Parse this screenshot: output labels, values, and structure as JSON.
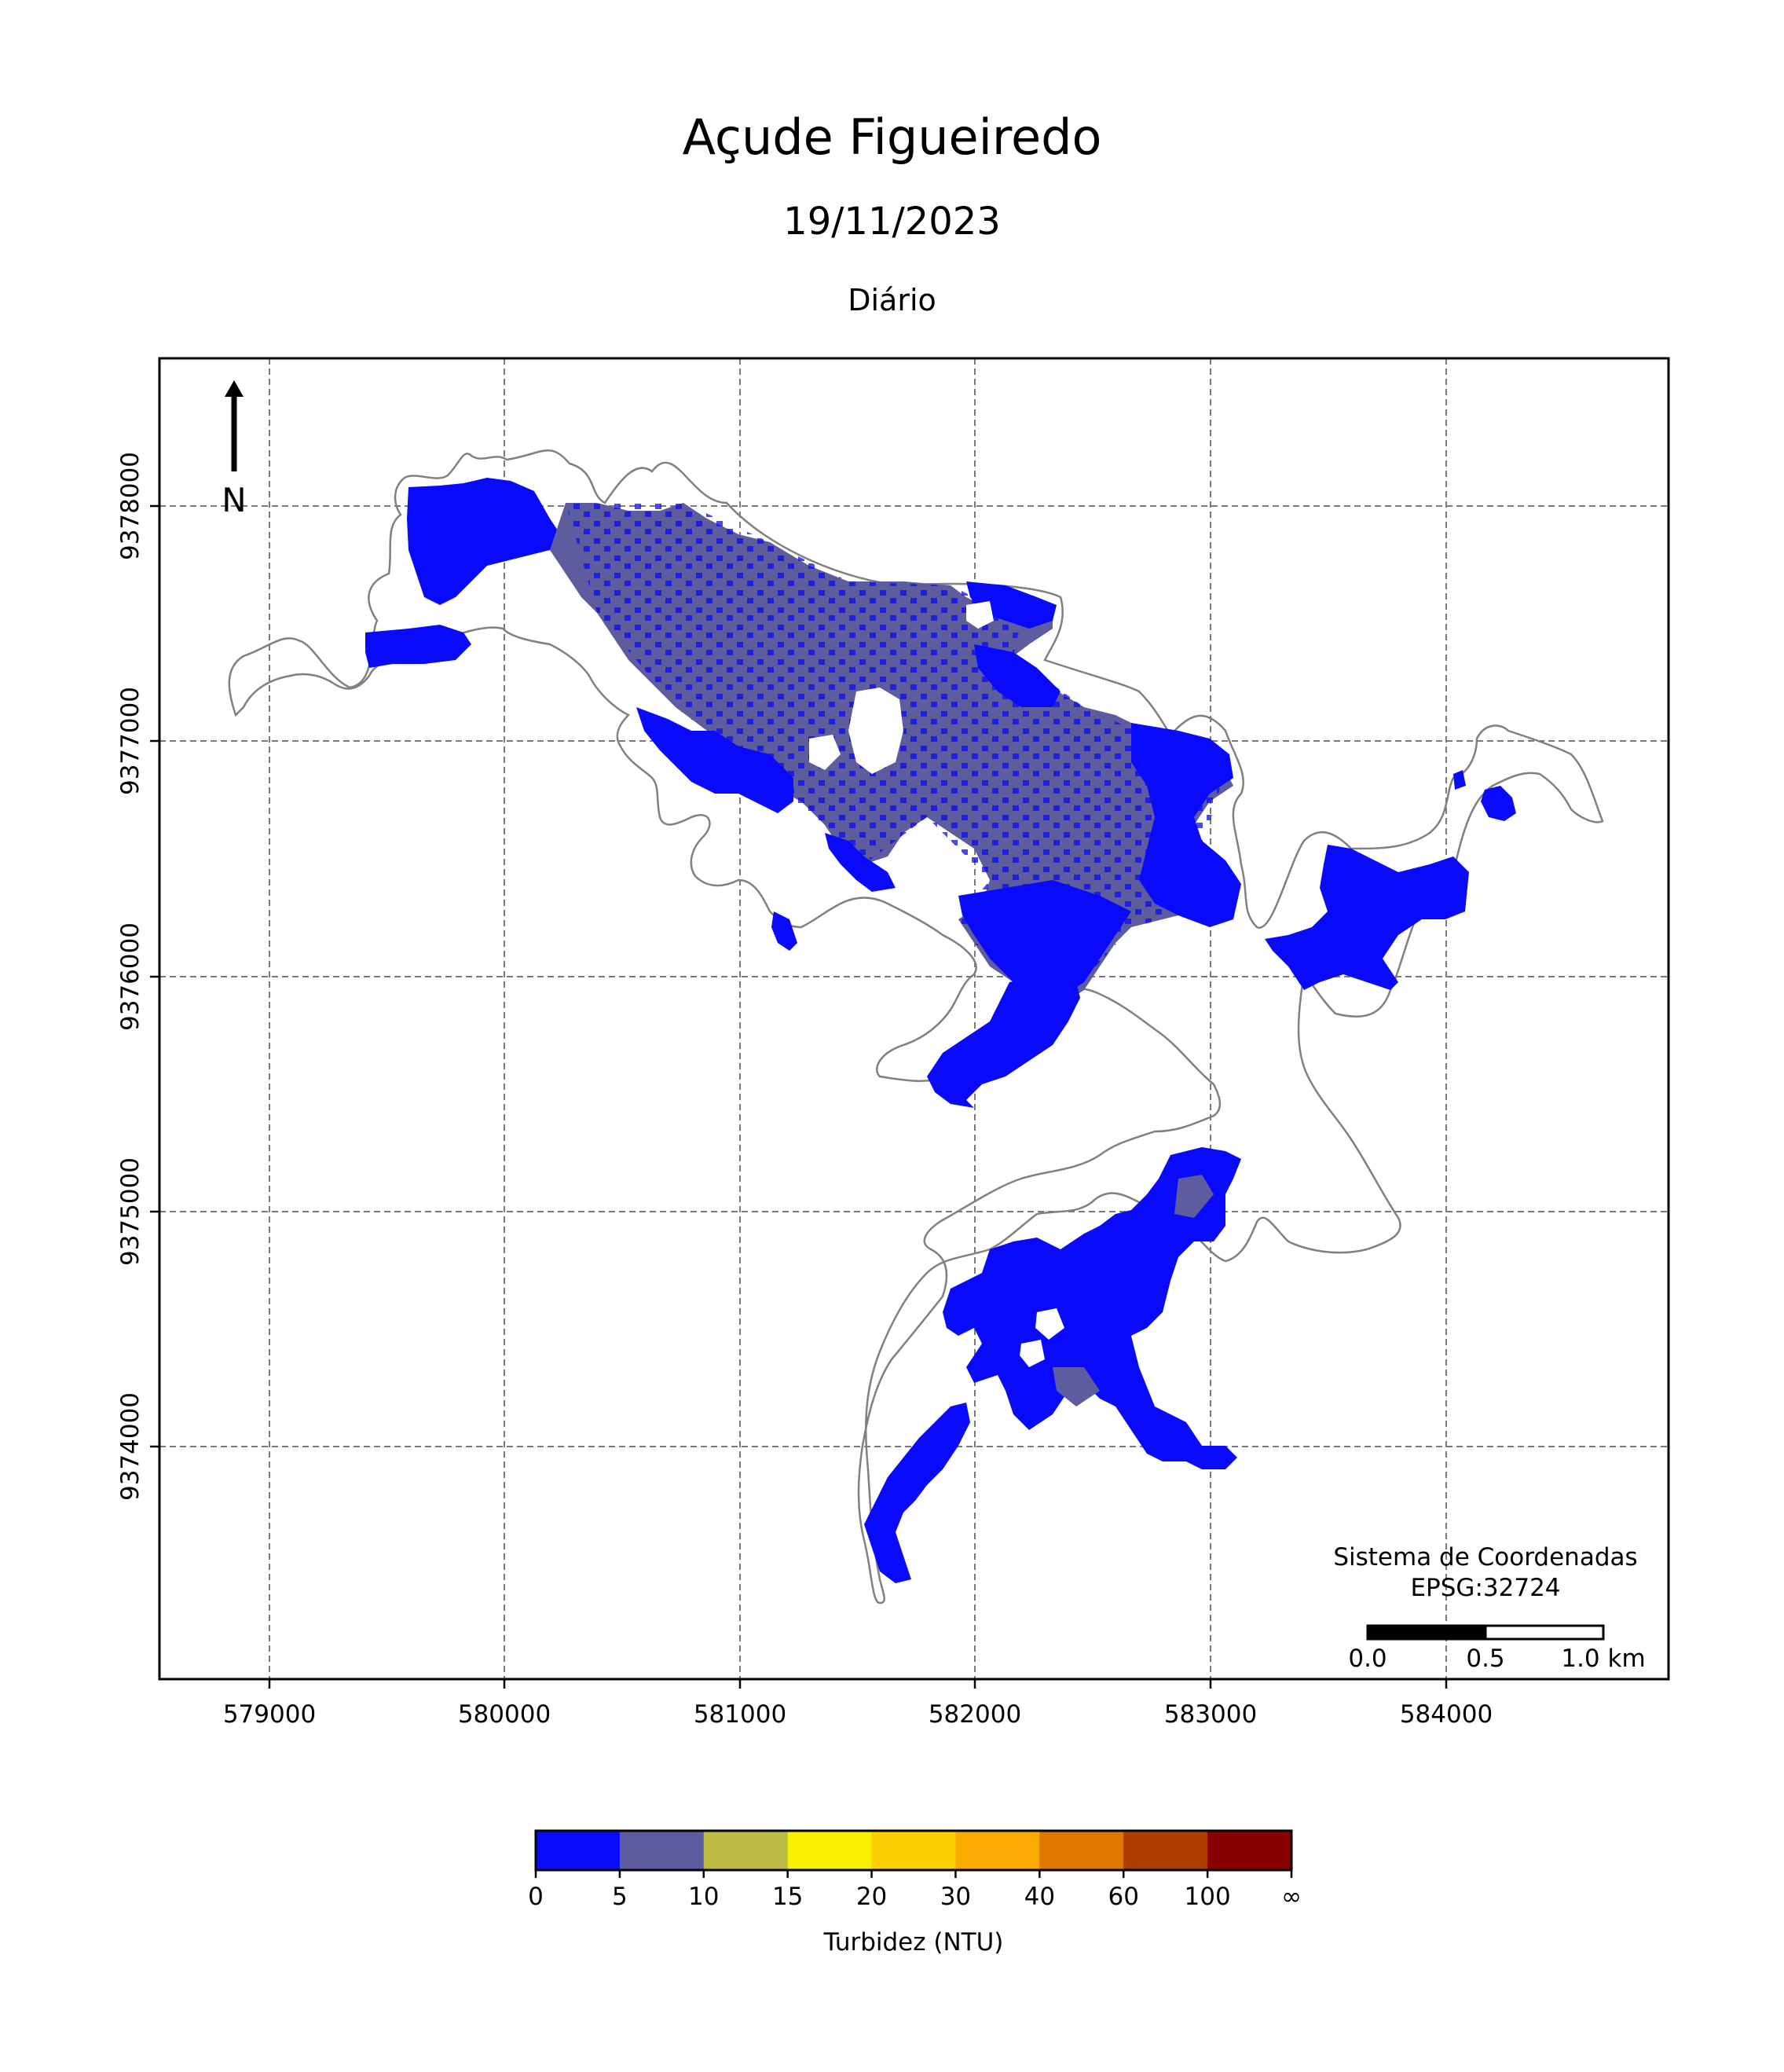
{
  "title": "Açude Figueiredo",
  "subtitle": "19/11/2023",
  "period": "Diário",
  "north_label": "N",
  "crs_line1": "Sistema de Coordenadas",
  "crs_line2": "EPSG:32724",
  "scalebar": {
    "labels": [
      "0.0",
      "0.5",
      "1.0 km"
    ]
  },
  "x_ticks": [
    "579000",
    "580000",
    "581000",
    "582000",
    "583000",
    "584000"
  ],
  "y_ticks": [
    "9374000",
    "9375000",
    "9376000",
    "9377000",
    "9378000"
  ],
  "colorbar": {
    "label": "Turbidez (NTU)",
    "boundaries": [
      "0",
      "5",
      "10",
      "15",
      "20",
      "30",
      "40",
      "60",
      "100",
      "∞"
    ],
    "colors": [
      "#0a0afa",
      "#5c5c9e",
      "#bcbc44",
      "#f8f000",
      "#fcd000",
      "#faaa00",
      "#e07800",
      "#b03c00",
      "#8a0000"
    ]
  },
  "colors": {
    "water_low": "#0a0afa",
    "water_mid": "#5c5c9e",
    "outline": "#808080"
  }
}
